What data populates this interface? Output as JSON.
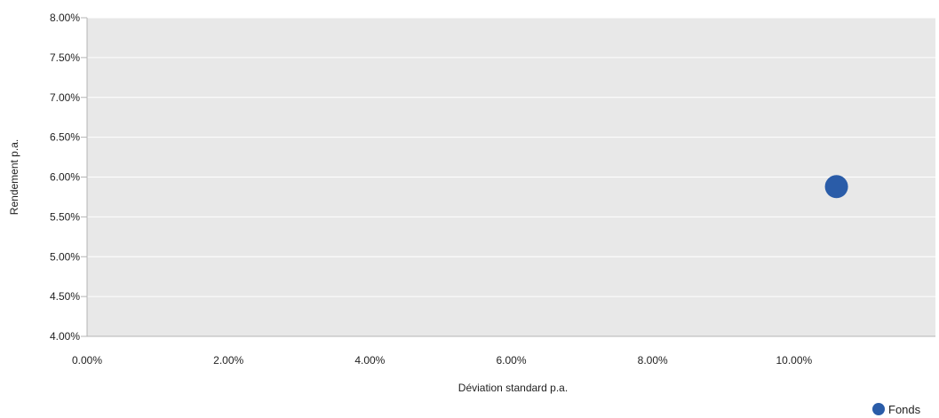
{
  "chart_data": {
    "type": "scatter",
    "xlabel": "Déviation standard p.a.",
    "ylabel": "Rendement p.a.",
    "xlim": [
      0,
      12
    ],
    "ylim": [
      4,
      8
    ],
    "x_ticks": [
      0,
      2,
      4,
      6,
      8,
      10
    ],
    "x_tick_labels": [
      "0.00%",
      "2.00%",
      "4.00%",
      "6.00%",
      "8.00%",
      "10.00%"
    ],
    "y_ticks": [
      4,
      4.5,
      5,
      5.5,
      6,
      6.5,
      7,
      7.5,
      8
    ],
    "y_tick_labels": [
      "4.00%",
      "4.50%",
      "5.00%",
      "5.50%",
      "6.00%",
      "6.50%",
      "7.00%",
      "7.50%",
      "8.00%"
    ],
    "grid": "horizontal",
    "legend_position": "bottom-right",
    "series": [
      {
        "name": "Fonds",
        "color": "#2a5ca8",
        "points": [
          {
            "x": 10.6,
            "y": 5.88
          }
        ]
      }
    ]
  },
  "colors": {
    "plot_background": "#e8e8e8",
    "gridline": "#ffffff",
    "axis_line": "#b4b4b4",
    "text": "#222222"
  }
}
